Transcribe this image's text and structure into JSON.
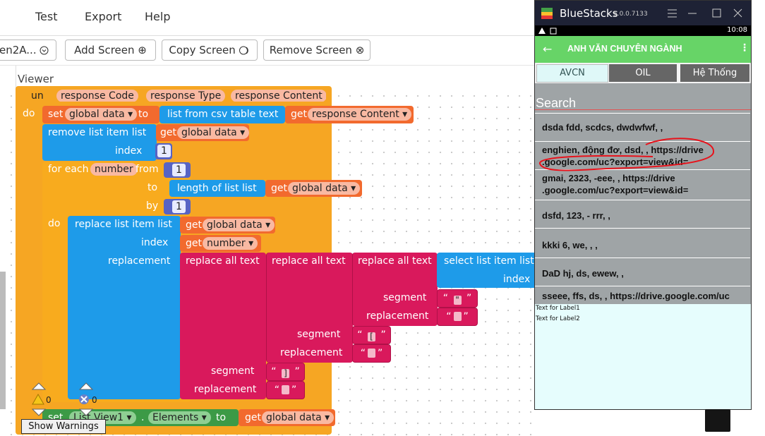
{
  "menu": {
    "items": [
      "Test",
      "Export",
      "Help"
    ]
  },
  "toolbar": {
    "screen": "en2A...",
    "add": "Add Screen ⊕",
    "copy": "Copy Screen",
    "remove": "Remove Screen ⊗"
  },
  "viewer": "Viewer",
  "blocks": {
    "header": [
      "un",
      "response Code",
      "response Type",
      "response Content"
    ],
    "do1": "do",
    "set": "set",
    "set_var": "global data ▾",
    "to1": "to",
    "csv": "list from csv table  text",
    "get": "get",
    "get1_var": "response Content ▾",
    "remove": "remove list item  list",
    "var_global": "global data ▾",
    "index": "index",
    "one": "1",
    "foreach": "for each",
    "foreach_var": "number",
    "from": "from",
    "to2": "to",
    "length": "length of list  list",
    "by": "by",
    "do2": "do",
    "replace_item": "replace list item  list",
    "get5_var": "number ▾",
    "replacement": "replacement",
    "rat": "replace all text",
    "select": "select list item  list",
    "segment": "segment",
    "quote_open": "“",
    "quote_close": "”",
    "txt1": "\"",
    "txt2": "[",
    "txt3": "]",
    "warn_count": "0",
    "err_count": "0",
    "listview": "List View1 ▾",
    "dot": ".",
    "elements": "Elements ▾",
    "show_warnings": "Show Warnings"
  },
  "emulator": {
    "app_name": "BlueStacks",
    "version": "5.0.0.7133",
    "time": "10:08",
    "title": "ANH VĂN CHUYÊN NGÀNH",
    "tabs": [
      "AVCN",
      "OIL",
      "Hệ Thống"
    ],
    "search": "Search",
    "items": [
      [
        "dsda fdd, scdcs, dwdwfwf, ,"
      ],
      [
        "enghien, động đơ, dsd, , https://drive",
        ".google.com/uc?export=view&id="
      ],
      [
        "gmai, 2323, -eee, , https://drive",
        ".google.com/uc?export=view&id="
      ],
      [
        "dsfd, 123, - rrr, ,"
      ],
      [
        "kkki 6, we, , ,"
      ],
      [
        "DaD hj, ds, ewew, ,"
      ],
      [
        "sseee, ffs, ds, , https://drive.google.com/uc"
      ]
    ],
    "labels": [
      "Text for Label1",
      "Text for Label2"
    ]
  }
}
